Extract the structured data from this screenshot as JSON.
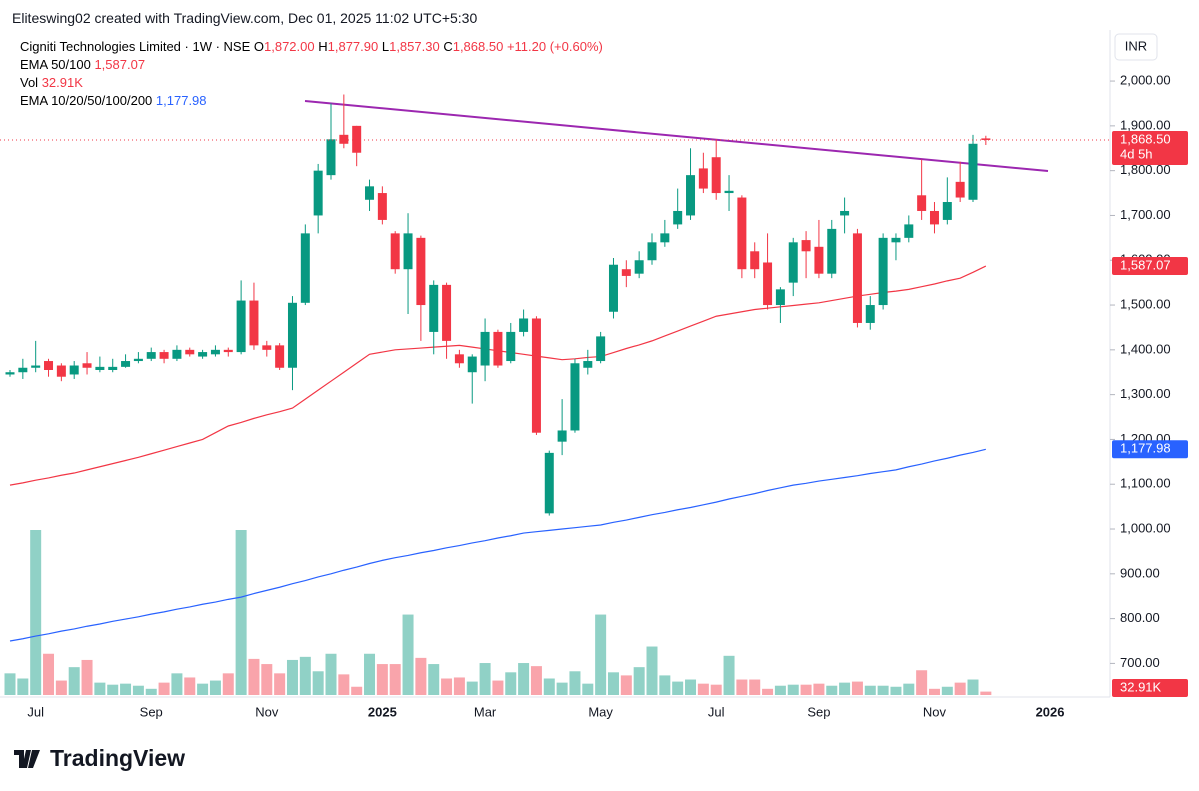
{
  "header": {
    "attribution": "Eliteswing02 created with TradingView.com, Dec 01, 2025 11:02 UTC+5:30",
    "symbol": "Cigniti Technologies Limited · 1W · NSE",
    "ohlc": [
      {
        "key": "O",
        "value": "1,872.00"
      },
      {
        "key": "H",
        "value": "1,877.90"
      },
      {
        "key": "L",
        "value": "1,857.30"
      },
      {
        "key": "C",
        "value": "1,868.50"
      }
    ],
    "change": "+11.20 (+0.60%)",
    "currency": "INR",
    "countdown": "4d 5h",
    "logo": "TradingView"
  },
  "chart_data": {
    "type": "candlestick",
    "up_color": "#089981",
    "down_color": "#f23645",
    "categories": [
      null,
      null,
      "Jul",
      null,
      null,
      null,
      null,
      null,
      null,
      null,
      null,
      "Sep",
      null,
      null,
      null,
      null,
      null,
      null,
      null,
      null,
      "Nov",
      null,
      null,
      null,
      null,
      null,
      null,
      null,
      null,
      "2025",
      null,
      null,
      null,
      null,
      null,
      null,
      null,
      "Mar",
      null,
      null,
      null,
      null,
      null,
      null,
      null,
      null,
      "May",
      null,
      null,
      null,
      null,
      null,
      null,
      null,
      null,
      "Jul",
      null,
      null,
      null,
      null,
      null,
      null,
      null,
      "Sep",
      null,
      null,
      null,
      null,
      null,
      null,
      null,
      null,
      "Nov",
      null,
      null,
      null,
      null,
      null,
      null,
      null,
      null,
      "2026"
    ],
    "open": [
      1345,
      1350,
      1360,
      1375,
      1365,
      1345,
      1370,
      1355,
      1355,
      1362,
      1375,
      1380,
      1395,
      1380,
      1400,
      1385,
      1390,
      1400,
      1395,
      1510,
      1410,
      1410,
      1360,
      1505,
      1700,
      1790,
      1880,
      1900,
      1735,
      1750,
      1660,
      1580,
      1650,
      1440,
      1545,
      1390,
      1350,
      1365,
      1440,
      1375,
      1440,
      1470,
      1035,
      1195,
      1220,
      1360,
      1375,
      1485,
      1580,
      1570,
      1600,
      1640,
      1680,
      1700,
      1805,
      1830,
      1750,
      1740,
      1620,
      1595,
      1500,
      1550,
      1645,
      1630,
      1570,
      1700,
      1660,
      1460,
      1500,
      1640,
      1650,
      1745,
      1710,
      1690,
      1775,
      1735,
      1872,
      null,
      null,
      null,
      null,
      null
    ],
    "high": [
      1355,
      1380,
      1420,
      1380,
      1370,
      1375,
      1395,
      1385,
      1380,
      1390,
      1395,
      1405,
      1400,
      1410,
      1405,
      1400,
      1410,
      1405,
      1555,
      1550,
      1420,
      1415,
      1520,
      1680,
      1815,
      1950,
      1970,
      1900,
      1780,
      1765,
      1665,
      1705,
      1655,
      1555,
      1550,
      1400,
      1390,
      1470,
      1445,
      1460,
      1490,
      1475,
      1175,
      1290,
      1380,
      1400,
      1440,
      1605,
      1600,
      1620,
      1660,
      1690,
      1760,
      1850,
      1840,
      1870,
      1790,
      1745,
      1640,
      1660,
      1540,
      1650,
      1665,
      1690,
      1690,
      1740,
      1670,
      1520,
      1660,
      1660,
      1700,
      1825,
      1730,
      1785,
      1820,
      1880,
      1877.9,
      null,
      null,
      null,
      null,
      null
    ],
    "low": [
      1340,
      1335,
      1350,
      1340,
      1330,
      1335,
      1345,
      1350,
      1350,
      1360,
      1370,
      1375,
      1370,
      1375,
      1385,
      1380,
      1385,
      1385,
      1390,
      1400,
      1385,
      1355,
      1310,
      1500,
      1660,
      1780,
      1850,
      1810,
      1710,
      1680,
      1570,
      1480,
      1420,
      1390,
      1380,
      1360,
      1280,
      1330,
      1360,
      1370,
      1430,
      1210,
      1030,
      1165,
      1215,
      1345,
      1370,
      1470,
      1540,
      1560,
      1590,
      1630,
      1670,
      1690,
      1750,
      1735,
      1710,
      1560,
      1560,
      1490,
      1460,
      1520,
      1560,
      1560,
      1560,
      1660,
      1450,
      1445,
      1490,
      1600,
      1640,
      1690,
      1660,
      1680,
      1730,
      1730,
      1857.3,
      null,
      null,
      null,
      null,
      null
    ],
    "close": [
      1350,
      1360,
      1365,
      1355,
      1340,
      1365,
      1360,
      1362,
      1362,
      1375,
      1380,
      1395,
      1380,
      1400,
      1390,
      1395,
      1400,
      1395,
      1510,
      1410,
      1400,
      1360,
      1505,
      1660,
      1800,
      1870,
      1860,
      1840,
      1765,
      1690,
      1580,
      1660,
      1500,
      1545,
      1420,
      1370,
      1385,
      1440,
      1365,
      1440,
      1470,
      1215,
      1170,
      1220,
      1370,
      1375,
      1430,
      1590,
      1565,
      1600,
      1640,
      1660,
      1710,
      1790,
      1760,
      1750,
      1755,
      1580,
      1580,
      1500,
      1535,
      1640,
      1620,
      1570,
      1670,
      1710,
      1460,
      1500,
      1650,
      1650,
      1680,
      1710,
      1680,
      1730,
      1740,
      1860,
      1868.5,
      null,
      null,
      null,
      null,
      null
    ],
    "volume": {
      "name": "Vol",
      "last_label": "32.91K",
      "values": [
        210,
        160,
        1600,
        400,
        140,
        270,
        340,
        120,
        100,
        110,
        90,
        60,
        120,
        210,
        170,
        110,
        140,
        210,
        1600,
        350,
        300,
        210,
        340,
        370,
        230,
        400,
        200,
        80,
        400,
        300,
        300,
        780,
        360,
        300,
        160,
        170,
        130,
        310,
        140,
        220,
        310,
        280,
        160,
        120,
        230,
        110,
        780,
        220,
        190,
        270,
        470,
        190,
        130,
        150,
        110,
        100,
        380,
        150,
        150,
        60,
        90,
        100,
        100,
        110,
        90,
        120,
        130,
        90,
        90,
        80,
        110,
        240,
        60,
        80,
        120,
        150,
        32.91,
        null,
        null,
        null,
        null,
        null
      ]
    },
    "series": [
      {
        "name": "EMA 50/100",
        "color": "#f23645",
        "last_label": "1,587.07",
        "values": [
          1098,
          1103,
          1109,
          1114,
          1120,
          1125,
          1132,
          1139,
          1146,
          1153,
          1160,
          1168,
          1176,
          1184,
          1192,
          1200,
          1215,
          1230,
          1238,
          1247,
          1255,
          1262,
          1270,
          1290,
          1310,
          1330,
          1350,
          1370,
          1390,
          1395,
          1400,
          1402,
          1404,
          1406,
          1408,
          1410,
          1406,
          1402,
          1398,
          1394,
          1390,
          1386,
          1382,
          1378,
          1380,
          1383,
          1385,
          1394,
          1403,
          1411,
          1420,
          1431,
          1442,
          1453,
          1464,
          1475,
          1480,
          1485,
          1490,
          1493,
          1496,
          1499,
          1502,
          1505,
          1510,
          1515,
          1520,
          1524,
          1528,
          1531,
          1535,
          1541,
          1547,
          1554,
          1560,
          1573,
          1587.07,
          null,
          null,
          null,
          null,
          null
        ]
      },
      {
        "name": "EMA 10/20/50/100/200",
        "color": "#2962ff",
        "last_label": "1,177.98",
        "values": [
          750,
          755,
          761,
          766,
          772,
          777,
          783,
          788,
          794,
          799,
          804,
          810,
          815,
          821,
          826,
          832,
          837,
          843,
          848,
          856,
          863,
          870,
          878,
          885,
          893,
          900,
          908,
          915,
          923,
          930,
          936,
          941,
          947,
          952,
          958,
          963,
          969,
          974,
          980,
          985,
          991,
          994,
          997,
          1000,
          1003,
          1006,
          1009,
          1015,
          1020,
          1026,
          1032,
          1037,
          1043,
          1048,
          1054,
          1060,
          1067,
          1073,
          1079,
          1086,
          1092,
          1098,
          1102,
          1107,
          1111,
          1115,
          1119,
          1124,
          1128,
          1132,
          1139,
          1145,
          1152,
          1158,
          1165,
          1171,
          1177.98,
          null,
          null,
          null,
          null,
          null
        ]
      }
    ],
    "ylim": [
      625,
      2114
    ],
    "yticks": [
      {
        "value": 700,
        "label": "700.00"
      },
      {
        "value": 800,
        "label": "800.00"
      },
      {
        "value": 900,
        "label": "900.00"
      },
      {
        "value": 1000,
        "label": "1,000.00"
      },
      {
        "value": 1100,
        "label": "1,100.00"
      },
      {
        "value": 1200,
        "label": "1,200.00"
      },
      {
        "value": 1300,
        "label": "1,300.00"
      },
      {
        "value": 1400,
        "label": "1,400.00"
      },
      {
        "value": 1500,
        "label": "1,500.00"
      },
      {
        "value": 1600,
        "label": "1,600.00"
      },
      {
        "value": 1700,
        "label": "1,700.00"
      },
      {
        "value": 1800,
        "label": "1,800.00"
      },
      {
        "value": 1900,
        "label": "1,900.00"
      },
      {
        "value": 2000,
        "label": "2,000.00"
      }
    ]
  }
}
